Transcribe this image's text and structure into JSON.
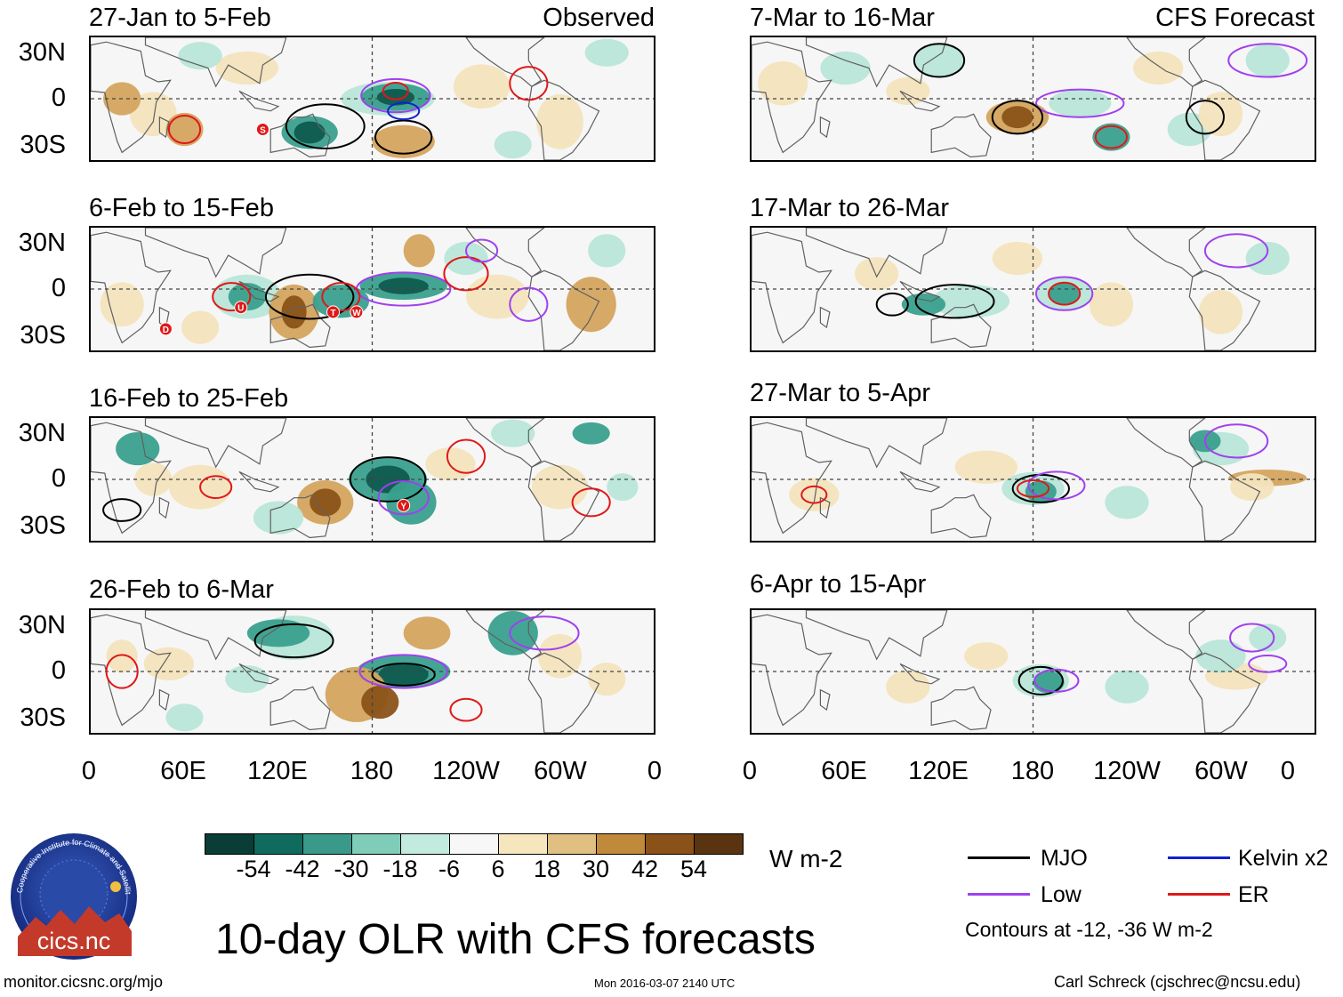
{
  "title": "10-day OLR with CFS forecasts",
  "colors": {
    "map_neutral": "#f6f6f6",
    "coast": "#606060",
    "mjo": "#000000",
    "low": "#a040f0",
    "kelvin": "#1020d0",
    "er": "#e01818",
    "wet_strong": "#0f5a4e",
    "wet_mid": "#3aa08e",
    "wet_light": "#b8e6d8",
    "dry_light": "#f3e4bd",
    "dry_mid": "#d4a45e",
    "dry_strong": "#8a5218"
  },
  "panels": {
    "left": [
      {
        "period": "27-Jan to 5-Feb",
        "label": "Observed"
      },
      {
        "period": "6-Feb to 15-Feb",
        "label": ""
      },
      {
        "period": "16-Feb to 25-Feb",
        "label": ""
      },
      {
        "period": "26-Feb to 6-Mar",
        "label": ""
      }
    ],
    "right": [
      {
        "period": "7-Mar to 16-Mar",
        "label": "CFS Forecast"
      },
      {
        "period": "17-Mar to 26-Mar",
        "label": ""
      },
      {
        "period": "27-Mar to 5-Apr",
        "label": ""
      },
      {
        "period": "6-Apr to 15-Apr",
        "label": ""
      }
    ]
  },
  "storm_markers": [
    "S",
    "U",
    "T",
    "W",
    "D",
    "Y"
  ],
  "axes": {
    "lat_ticks": [
      "30N",
      "0",
      "30S"
    ],
    "lon_ticks": [
      "0",
      "60E",
      "120E",
      "180",
      "120W",
      "60W",
      "0"
    ]
  },
  "colorbar": {
    "unit": "W m-2",
    "labels": [
      "-54",
      "-42",
      "-30",
      "-18",
      "-6",
      "6",
      "18",
      "30",
      "42",
      "54"
    ],
    "colors": [
      "#0a3d35",
      "#0f6b5e",
      "#3a9a8a",
      "#7fcdb9",
      "#c2eadf",
      "#f7f7f7",
      "#f6e6bd",
      "#e0c082",
      "#c08a3a",
      "#8a5218",
      "#5a3410"
    ]
  },
  "legend": {
    "items": [
      {
        "name": "MJO",
        "color": "#000000"
      },
      {
        "name": "Kelvin x2",
        "color": "#1020d0"
      },
      {
        "name": "Low",
        "color": "#a040f0"
      },
      {
        "name": "ER",
        "color": "#e01818"
      }
    ],
    "contours_note": "Contours at -12, -36 W m-2"
  },
  "footer": {
    "url": "monitor.cicsnc.org/mjo",
    "timestamp": "Mon 2016-03-07 2140 UTC",
    "author": "Carl Schreck (cjschrec@ncsu.edu)"
  },
  "logo": {
    "text": "cics.nc",
    "ring_text": "Cooperative Institute for Climate and Satellites"
  }
}
